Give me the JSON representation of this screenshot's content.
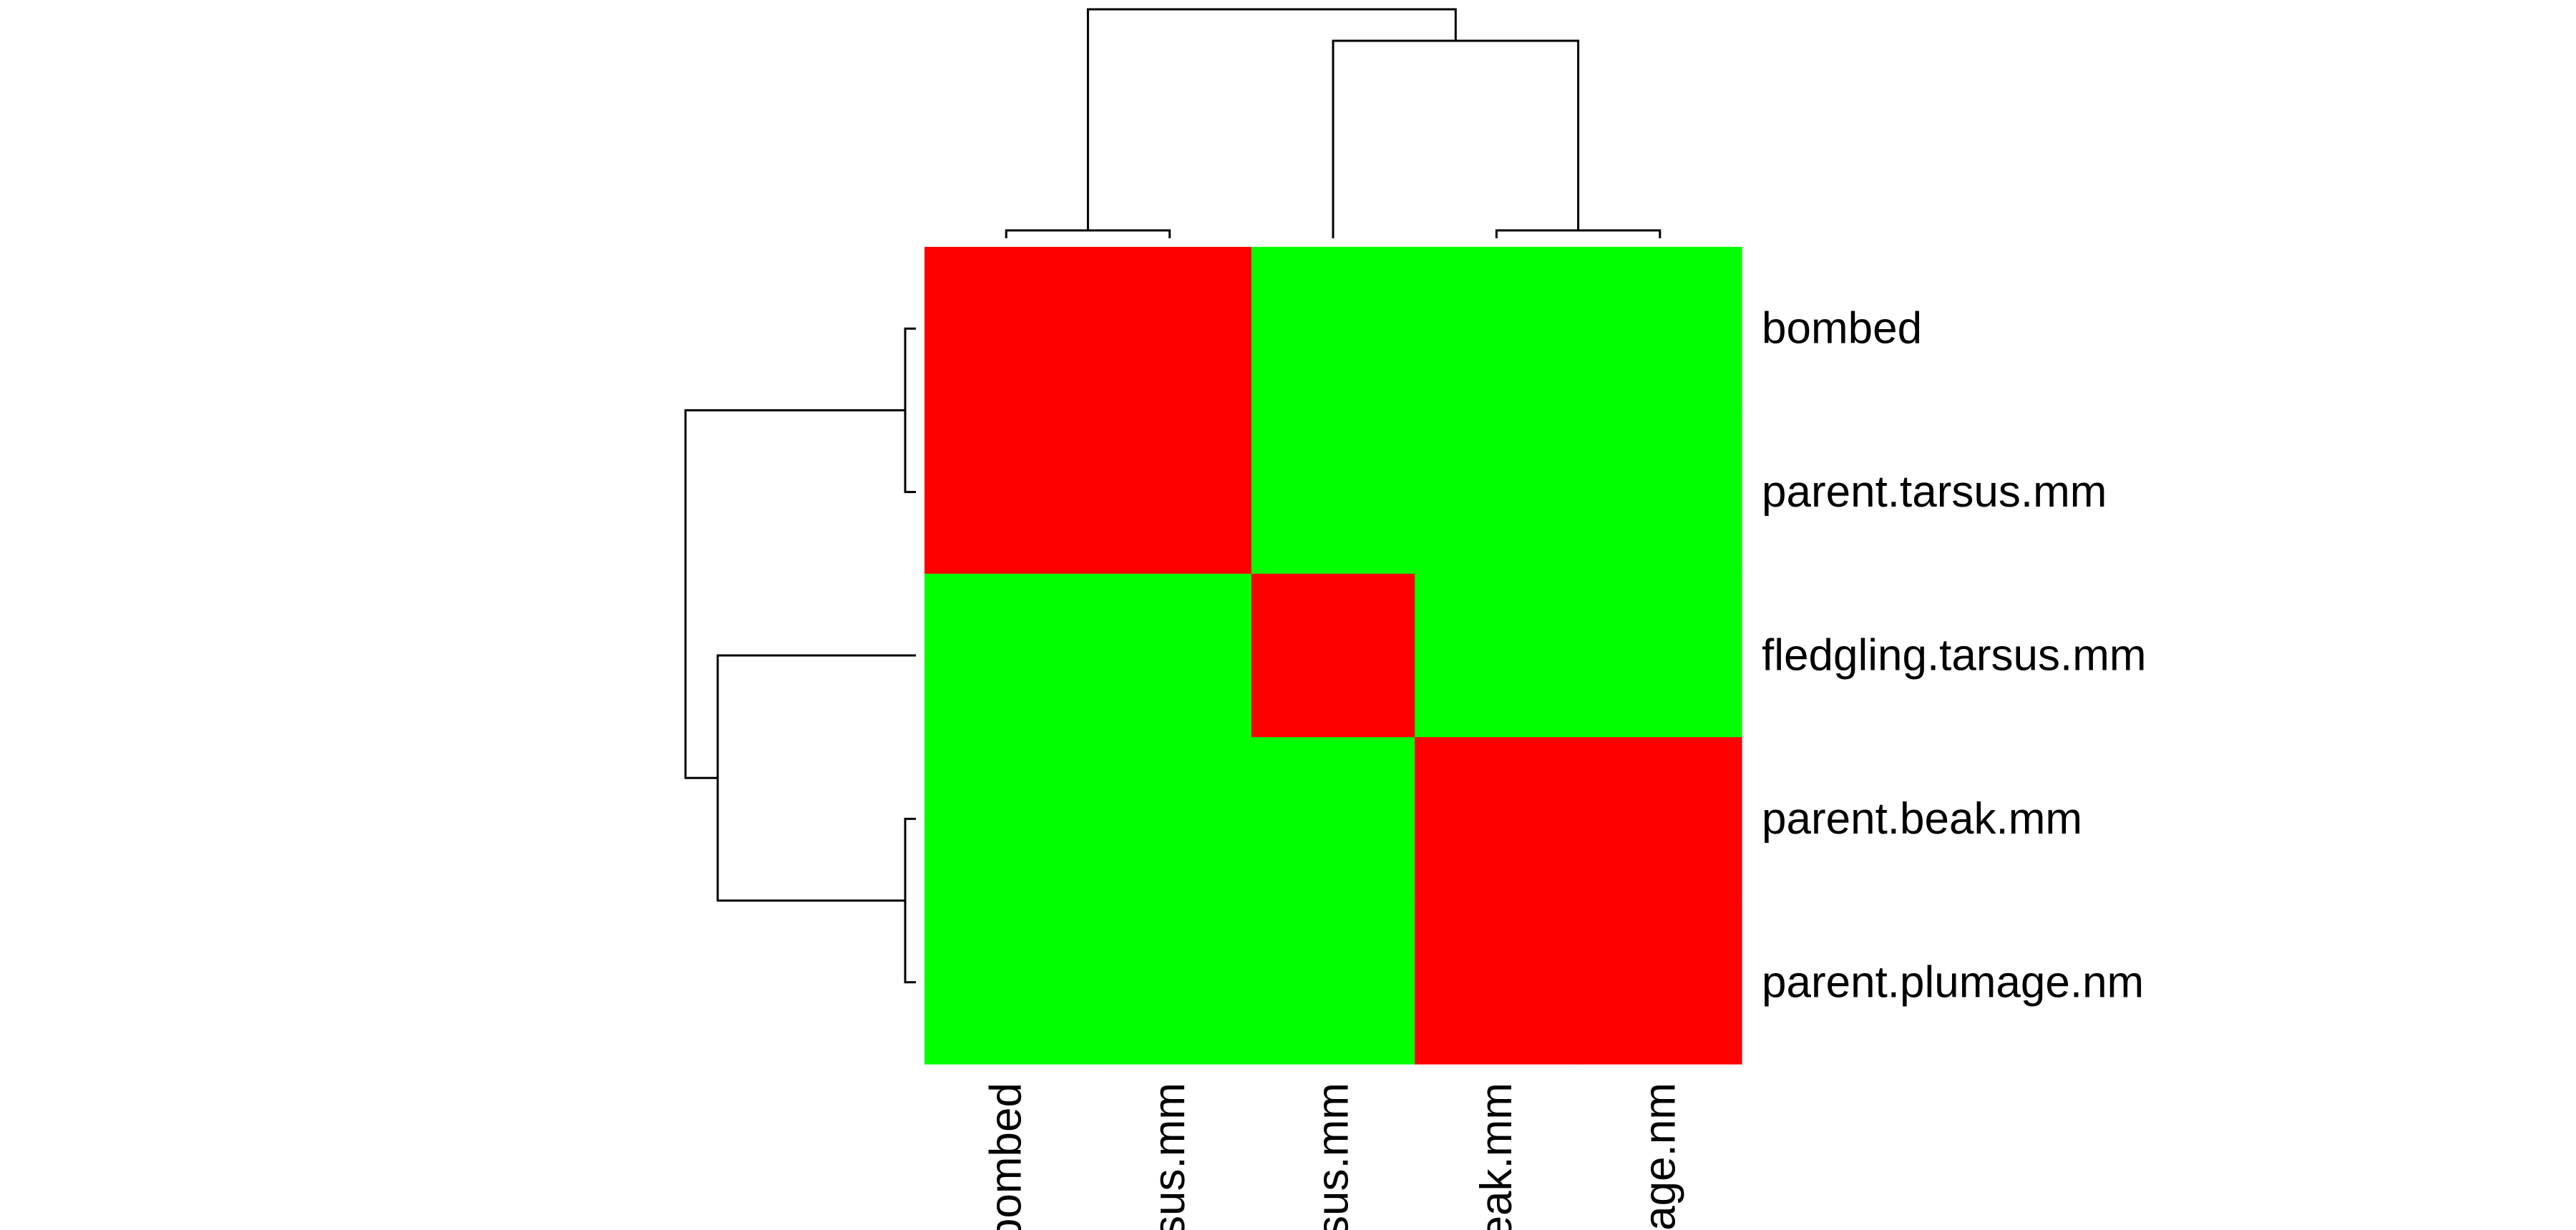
{
  "chart_data": {
    "type": "heatmap",
    "title": "",
    "xlabel": "",
    "ylabel": "",
    "rows": [
      "bombed",
      "parent.tarsus.mm",
      "fledgling.tarsus.mm",
      "parent.beak.mm",
      "parent.plumage.nm"
    ],
    "columns": [
      "bombed",
      "parent.tarsus.mm",
      "fledgling.tarsus.mm",
      "parent.beak.mm",
      "parent.plumage.nm"
    ],
    "column_tick_labels": [
      "bombed",
      "sus.mm",
      "sus.mm",
      "eak.mm",
      "age.nm"
    ],
    "values": [
      [
        1,
        1,
        0,
        0,
        0
      ],
      [
        1,
        1,
        0,
        0,
        0
      ],
      [
        0,
        0,
        1,
        0,
        0
      ],
      [
        0,
        0,
        0,
        1,
        1
      ],
      [
        0,
        0,
        0,
        1,
        1
      ]
    ],
    "colors": {
      "high": "#ff0000",
      "low": "#00ff00"
    },
    "row_dendrogram": true,
    "column_dendrogram": true,
    "grid": false,
    "legend": false
  }
}
